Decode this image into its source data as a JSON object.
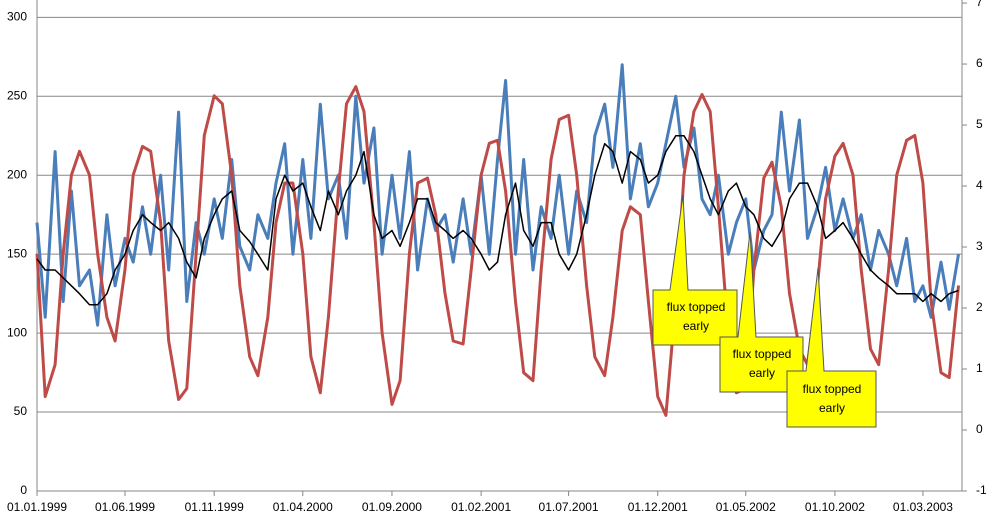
{
  "chart_data": {
    "type": "line",
    "x": [
      "01.01.1999",
      "15.01.1999",
      "01.02.1999",
      "15.02.1999",
      "01.03.1999",
      "15.03.1999",
      "01.04.1999",
      "15.04.1999",
      "01.05.1999",
      "15.05.1999",
      "01.06.1999",
      "15.06.1999",
      "01.07.1999",
      "15.07.1999",
      "01.08.1999",
      "15.08.1999",
      "01.09.1999",
      "15.09.1999",
      "01.10.1999",
      "15.10.1999",
      "01.11.1999",
      "15.11.1999",
      "01.12.1999",
      "15.12.1999",
      "01.01.2000",
      "15.01.2000",
      "01.02.2000",
      "15.02.2000",
      "01.03.2000",
      "15.03.2000",
      "01.04.2000",
      "15.04.2000",
      "01.05.2000",
      "15.05.2000",
      "01.06.2000",
      "15.06.2000",
      "01.07.2000",
      "15.07.2000",
      "01.08.2000",
      "15.08.2000",
      "01.09.2000",
      "15.09.2000",
      "01.10.2000",
      "15.10.2000",
      "01.11.2000",
      "15.11.2000",
      "01.12.2000",
      "15.12.2000",
      "01.01.2001",
      "15.01.2001",
      "01.02.2001",
      "15.02.2001",
      "01.03.2001",
      "15.03.2001",
      "01.04.2001",
      "15.04.2001",
      "01.05.2001",
      "15.05.2001",
      "01.06.2001",
      "15.06.2001",
      "01.07.2001",
      "15.07.2001",
      "01.08.2001",
      "15.08.2001",
      "01.09.2001",
      "15.09.2001",
      "01.10.2001",
      "15.10.2001",
      "01.11.2001",
      "15.11.2001",
      "01.12.2001",
      "15.12.2001",
      "01.01.2002",
      "15.01.2002",
      "01.02.2002",
      "15.02.2002",
      "01.03.2002",
      "15.03.2002",
      "01.04.2002",
      "15.04.2002",
      "01.05.2002",
      "15.05.2002",
      "01.06.2002",
      "15.06.2002",
      "01.07.2002",
      "15.07.2002",
      "01.08.2002",
      "15.08.2002",
      "01.09.2002",
      "15.09.2002",
      "01.10.2002",
      "15.10.2002",
      "01.11.2002",
      "15.11.2002",
      "01.12.2002",
      "15.12.2002",
      "01.01.2003",
      "15.01.2003",
      "01.02.2003",
      "15.02.2003",
      "01.03.2003",
      "15.03.2003",
      "01.04.2003",
      "15.04.2003",
      "01.05.2003"
    ],
    "xlim": [
      "01.01.1999",
      "07.05.2003"
    ],
    "xticks": [
      "01.01.1999",
      "01.06.1999",
      "01.11.1999",
      "01.04.2000",
      "01.09.2000",
      "01.02.2001",
      "01.07.2001",
      "01.12.2001",
      "01.05.2002",
      "01.10.2002",
      "01.03.2003"
    ],
    "ylim": [
      0,
      311
    ],
    "yticks": [
      0,
      50,
      100,
      150,
      200,
      250,
      300
    ],
    "y2lim": [
      -1,
      7.05
    ],
    "y2ticks": [
      -1,
      0,
      1,
      2,
      3,
      4,
      5,
      6,
      7
    ],
    "grid": true,
    "series": [
      {
        "color": "#4a7ebb",
        "values": [
          170,
          110,
          215,
          120,
          190,
          130,
          140,
          105,
          175,
          130,
          160,
          145,
          180,
          150,
          200,
          140,
          240,
          120,
          170,
          150,
          185,
          160,
          210,
          155,
          140,
          175,
          160,
          195,
          220,
          150,
          210,
          160,
          245,
          185,
          200,
          160,
          250,
          195,
          230,
          150,
          200,
          160,
          215,
          140,
          185,
          165,
          175,
          145,
          185,
          150,
          200,
          150,
          210,
          260,
          150,
          210,
          140,
          180,
          160,
          200,
          150,
          190,
          170,
          225,
          245,
          205,
          270,
          185,
          220,
          180,
          195,
          220,
          250,
          205,
          230,
          185,
          175,
          200,
          150,
          170,
          185,
          140,
          165,
          175,
          240,
          190,
          235,
          160,
          180,
          205,
          165,
          185,
          160,
          175,
          140,
          165,
          150,
          130,
          160,
          120,
          130,
          110,
          145,
          115,
          150
        ]
      },
      {
        "color": "#be4b48",
        "axis": "y2",
        "values": [
          2.89,
          0.55,
          1.07,
          2.89,
          4.18,
          4.57,
          4.18,
          2.89,
          1.85,
          1.46,
          2.63,
          4.18,
          4.65,
          4.57,
          3.4,
          1.46,
          0.5,
          0.68,
          2.89,
          4.83,
          5.48,
          5.35,
          4.18,
          2.37,
          1.2,
          0.89,
          1.85,
          3.4,
          4.05,
          4.05,
          2.89,
          1.2,
          0.61,
          1.85,
          3.92,
          5.35,
          5.63,
          5.22,
          3.4,
          1.59,
          0.42,
          0.81,
          2.89,
          4.05,
          4.13,
          3.53,
          2.24,
          1.46,
          1.41,
          2.63,
          4.18,
          4.7,
          4.75,
          3.92,
          2.11,
          0.94,
          0.81,
          2.63,
          4.44,
          5.09,
          5.16,
          4.18,
          2.37,
          1.2,
          0.89,
          1.85,
          3.27,
          3.66,
          3.53,
          2.11,
          0.55,
          0.24,
          2.11,
          4.18,
          5.22,
          5.5,
          5.22,
          3.66,
          1.59,
          0.61,
          0.68,
          2.63,
          4.13,
          4.39,
          3.66,
          2.24,
          1.33,
          1.07,
          2.37,
          3.79,
          4.49,
          4.7,
          4.18,
          2.63,
          1.33,
          1.07,
          2.63,
          4.18,
          4.75,
          4.83,
          4.05,
          2.11,
          0.94,
          0.86,
          2.37
        ]
      },
      {
        "color": "#000000",
        "values": [
          147,
          140,
          140,
          135,
          130,
          125,
          118,
          118,
          125,
          140,
          150,
          165,
          175,
          170,
          165,
          170,
          160,
          145,
          135,
          160,
          175,
          185,
          190,
          165,
          158,
          150,
          140,
          185,
          200,
          190,
          195,
          180,
          165,
          190,
          175,
          190,
          200,
          215,
          175,
          160,
          165,
          155,
          170,
          185,
          185,
          170,
          165,
          160,
          165,
          160,
          150,
          140,
          145,
          175,
          195,
          165,
          155,
          170,
          170,
          150,
          140,
          150,
          175,
          200,
          220,
          215,
          195,
          215,
          210,
          195,
          200,
          215,
          225,
          225,
          215,
          200,
          185,
          175,
          190,
          195,
          180,
          175,
          160,
          155,
          165,
          185,
          195,
          195,
          180,
          160,
          165,
          170,
          160,
          150,
          140,
          135,
          130,
          125,
          125,
          125,
          120,
          125,
          120,
          125,
          127
        ]
      }
    ],
    "annotations": [
      "flux topped early",
      "flux topped early",
      "flux topped early"
    ]
  }
}
